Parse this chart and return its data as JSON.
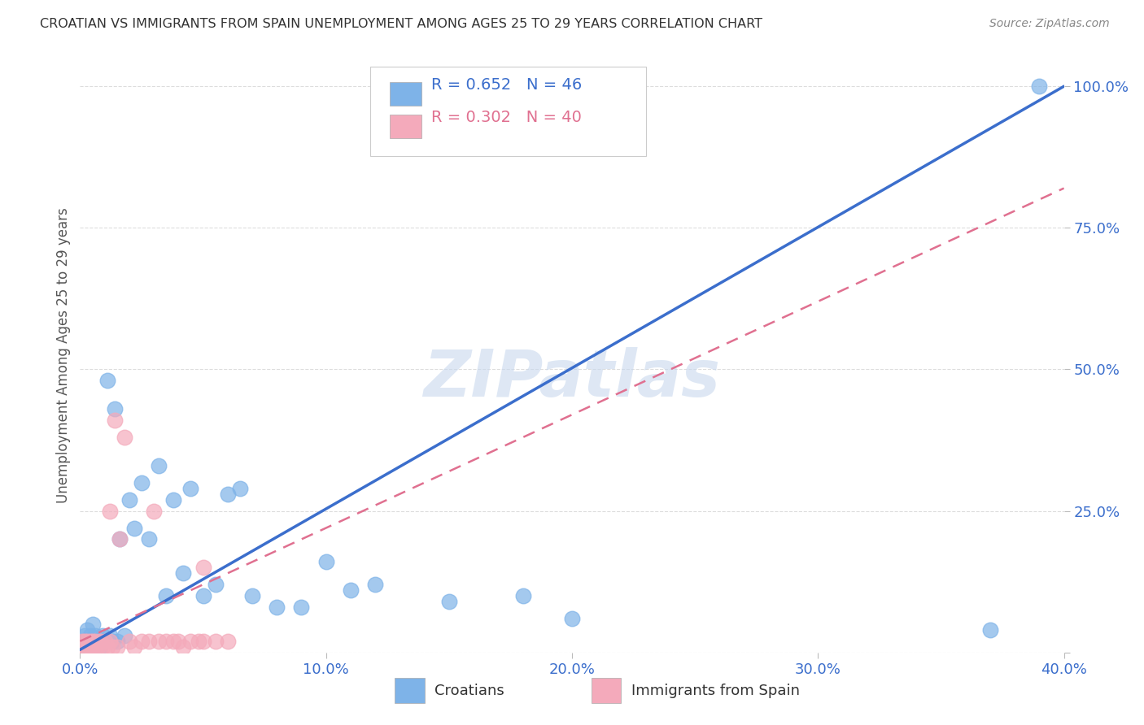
{
  "title": "CROATIAN VS IMMIGRANTS FROM SPAIN UNEMPLOYMENT AMONG AGES 25 TO 29 YEARS CORRELATION CHART",
  "source": "Source: ZipAtlas.com",
  "ylabel": "Unemployment Among Ages 25 to 29 years",
  "xlim": [
    0.0,
    0.4
  ],
  "ylim": [
    0.0,
    1.05
  ],
  "xtick_positions": [
    0.0,
    0.1,
    0.2,
    0.3,
    0.4
  ],
  "xtick_labels": [
    "0.0%",
    "10.0%",
    "20.0%",
    "30.0%",
    "40.0%"
  ],
  "ytick_positions": [
    0.0,
    0.25,
    0.5,
    0.75,
    1.0
  ],
  "ytick_labels": [
    "",
    "25.0%",
    "50.0%",
    "75.0%",
    "100.0%"
  ],
  "watermark": "ZIPatlas",
  "legend_blue_label": "Croatians",
  "legend_pink_label": "Immigrants from Spain",
  "R_blue": 0.652,
  "N_blue": 46,
  "R_pink": 0.302,
  "N_pink": 40,
  "blue_color": "#7EB3E8",
  "pink_color": "#F4AABB",
  "blue_line_color": "#3B6ECC",
  "pink_line_color": "#E07090",
  "blue_line_x0": 0.0,
  "blue_line_y0": 0.005,
  "blue_line_x1": 0.4,
  "blue_line_y1": 1.0,
  "pink_line_x0": 0.0,
  "pink_line_y0": 0.02,
  "pink_line_x1": 0.4,
  "pink_line_y1": 0.82,
  "blue_x": [
    0.001,
    0.002,
    0.002,
    0.003,
    0.003,
    0.004,
    0.004,
    0.005,
    0.005,
    0.006,
    0.006,
    0.007,
    0.008,
    0.009,
    0.01,
    0.011,
    0.012,
    0.013,
    0.014,
    0.015,
    0.016,
    0.018,
    0.02,
    0.022,
    0.025,
    0.028,
    0.032,
    0.035,
    0.038,
    0.042,
    0.045,
    0.05,
    0.055,
    0.06,
    0.065,
    0.07,
    0.08,
    0.09,
    0.1,
    0.11,
    0.12,
    0.15,
    0.18,
    0.2,
    0.37,
    0.39
  ],
  "blue_y": [
    0.01,
    0.02,
    0.03,
    0.01,
    0.04,
    0.02,
    0.03,
    0.01,
    0.05,
    0.02,
    0.03,
    0.02,
    0.01,
    0.03,
    0.02,
    0.48,
    0.03,
    0.02,
    0.43,
    0.02,
    0.2,
    0.03,
    0.27,
    0.22,
    0.3,
    0.2,
    0.33,
    0.1,
    0.27,
    0.14,
    0.29,
    0.1,
    0.12,
    0.28,
    0.29,
    0.1,
    0.08,
    0.08,
    0.16,
    0.11,
    0.12,
    0.09,
    0.1,
    0.06,
    0.04,
    1.0
  ],
  "pink_x": [
    0.001,
    0.001,
    0.002,
    0.002,
    0.003,
    0.003,
    0.004,
    0.004,
    0.005,
    0.005,
    0.006,
    0.006,
    0.007,
    0.008,
    0.009,
    0.01,
    0.011,
    0.012,
    0.013,
    0.014,
    0.015,
    0.016,
    0.018,
    0.02,
    0.022,
    0.025,
    0.028,
    0.03,
    0.032,
    0.035,
    0.038,
    0.04,
    0.042,
    0.045,
    0.048,
    0.05,
    0.055,
    0.06,
    0.05,
    0.012
  ],
  "pink_y": [
    0.01,
    0.02,
    0.01,
    0.02,
    0.01,
    0.02,
    0.01,
    0.02,
    0.01,
    0.02,
    0.01,
    0.02,
    0.01,
    0.02,
    0.01,
    0.02,
    0.01,
    0.02,
    0.01,
    0.41,
    0.01,
    0.2,
    0.38,
    0.02,
    0.01,
    0.02,
    0.02,
    0.25,
    0.02,
    0.02,
    0.02,
    0.02,
    0.01,
    0.02,
    0.02,
    0.15,
    0.02,
    0.02,
    0.02,
    0.25
  ]
}
